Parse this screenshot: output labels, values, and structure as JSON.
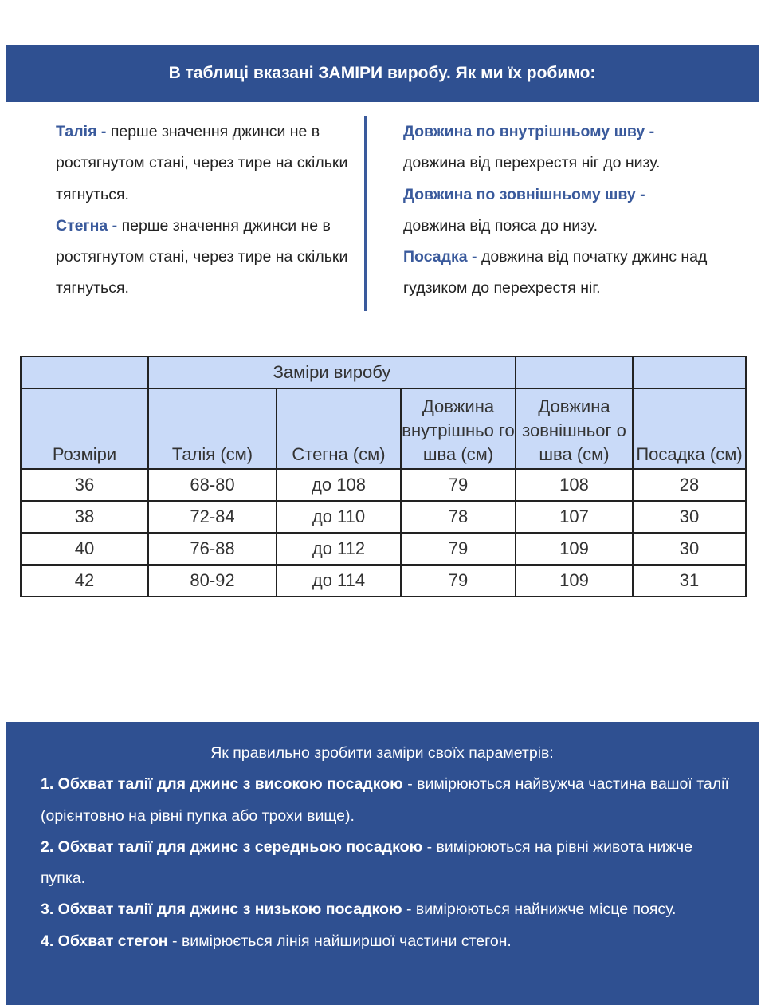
{
  "banner": {
    "title": "В таблиці вказані ЗАМІРИ виробу. Як ми їх робимо:"
  },
  "definitions": {
    "left": [
      {
        "term": "Талія",
        "text": "перше значення джинси не в ростягнутом стані, через тире на скільки тягнуться."
      },
      {
        "term": "Стегна",
        "text": "перше значення джинси не в ростягнутом стані, через тире на скільки тягнуться."
      }
    ],
    "right": [
      {
        "term": "Довжина по внутрішньому шву",
        "text": "довжина від перехрестя ніг до низу."
      },
      {
        "term": "Довжина по зовнішньому шву",
        "text": "довжина від пояса до низу."
      },
      {
        "term": "Посадка",
        "text": "довжина від початку джинс над гудзиком до перехрестя ніг."
      }
    ]
  },
  "table": {
    "group_header": "Заміри виробу",
    "columns": [
      "Розміри",
      "Талія (см)",
      "Стегна (см)",
      "Довжина внутрішньо го шва (см)",
      "Довжина зовнішньог о шва (см)",
      "Посадка (см)"
    ],
    "rows": [
      [
        "36",
        "68-80",
        "до 108",
        "79",
        "108",
        "28"
      ],
      [
        "38",
        "72-84",
        "до 110",
        "78",
        "107",
        "30"
      ],
      [
        "40",
        "76-88",
        "до 112",
        "79",
        "109",
        "30"
      ],
      [
        "42",
        "80-92",
        "до 114",
        "79",
        "109",
        "31"
      ]
    ]
  },
  "instructions": {
    "title": "Як правильно зробити заміри своїх параметрів:",
    "items": [
      {
        "term": "1. Обхват талії для джинс з високою посадкою",
        "text": "вимірюються найвужча частина вашої талії (орієнтовно на рівні пупка або трохи вище)."
      },
      {
        "term": "2. Обхват талії для джинс з середньою посадкою",
        "text": "вимірюються на рівні живота нижче пупка."
      },
      {
        "term": "3. Обхват талії для джинс з низькою посадкою",
        "text": "вимірюються найнижче місце поясу."
      },
      {
        "term": "4. Обхват стегон",
        "text": "вимірюється лінія найширшої частини стегон."
      }
    ]
  },
  "colors": {
    "brand_blue": "#2f5091",
    "table_header": "#c9daf8",
    "term_blue": "#3a5a9c"
  }
}
